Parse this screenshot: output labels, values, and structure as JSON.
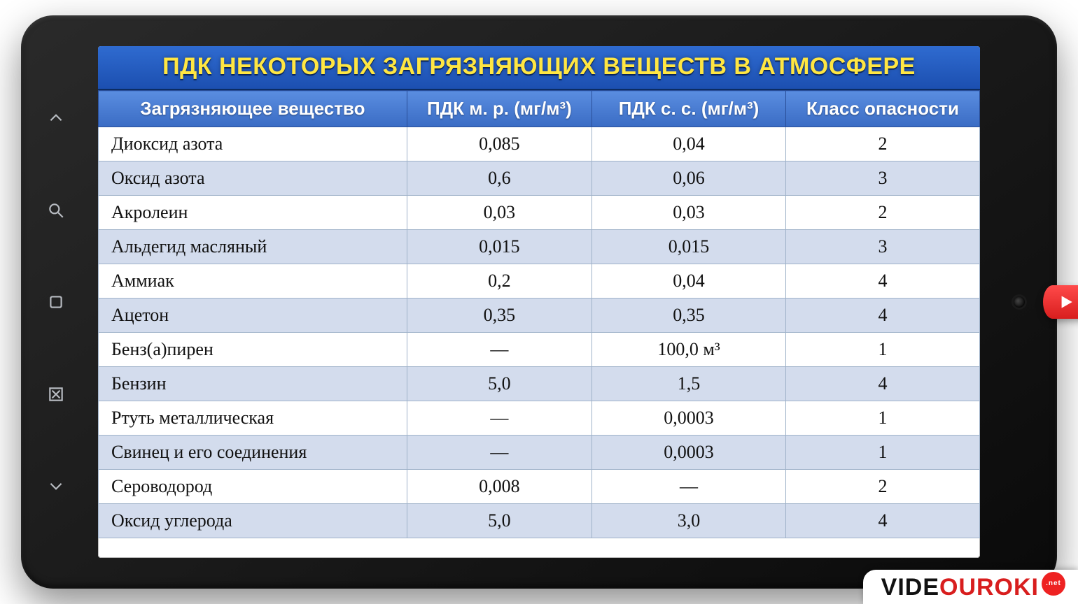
{
  "title": "ПДК НЕКОТОРЫХ ЗАГРЯЗНЯЮЩИХ ВЕЩЕСТВ В АТМОСФЕРЕ",
  "colors": {
    "title_bg_top": "#2f6bd0",
    "title_bg_bottom": "#1c4fb0",
    "title_text": "#ffe642",
    "header_bg_top": "#5a8de0",
    "header_bg_bottom": "#3a6cc4",
    "header_text": "#ffffff",
    "row_alt_bg": "#d3dced",
    "row_bg": "#ffffff",
    "border": "#9fb2c9",
    "tablet_frame": "#1a1a1a",
    "play_button": "#d81e1e"
  },
  "typography": {
    "title_fontsize": 34,
    "header_fontsize": 26,
    "cell_fontsize": 26,
    "title_font": "Arial",
    "cell_font": "Georgia"
  },
  "table": {
    "type": "table",
    "column_widths_pct": [
      35,
      21,
      22,
      22
    ],
    "columns": [
      "Загрязняющее вещество",
      "ПДК м. р. (мг/м³)",
      "ПДК с. с. (мг/м³)",
      "Класс опасности"
    ],
    "rows": [
      [
        "Диоксид азота",
        "0,085",
        "0,04",
        "2"
      ],
      [
        "Оксид азота",
        "0,6",
        "0,06",
        "3"
      ],
      [
        "Акролеин",
        "0,03",
        "0,03",
        "2"
      ],
      [
        "Альдегид масляный",
        "0,015",
        "0,015",
        "3"
      ],
      [
        "Аммиак",
        "0,2",
        "0,04",
        "4"
      ],
      [
        "Ацетон",
        "0,35",
        "0,35",
        "4"
      ],
      [
        "Бенз(а)пирен",
        "—",
        "100,0 м³",
        "1"
      ],
      [
        "Бензин",
        "5,0",
        "1,5",
        "4"
      ],
      [
        "Ртуть металлическая",
        "—",
        "0,0003",
        "1"
      ],
      [
        "Свинец и его соединения",
        "—",
        "0,0003",
        "1"
      ],
      [
        "Сероводород",
        "0,008",
        "—",
        "2"
      ],
      [
        "Оксид углерода",
        "5,0",
        "3,0",
        "4"
      ]
    ]
  },
  "watermark": {
    "pre": "VIDE",
    "mid": "OUROKI",
    "badge": ".net"
  },
  "nav_icons": [
    "chevron-up",
    "search",
    "square",
    "close-x",
    "chevron-down"
  ]
}
